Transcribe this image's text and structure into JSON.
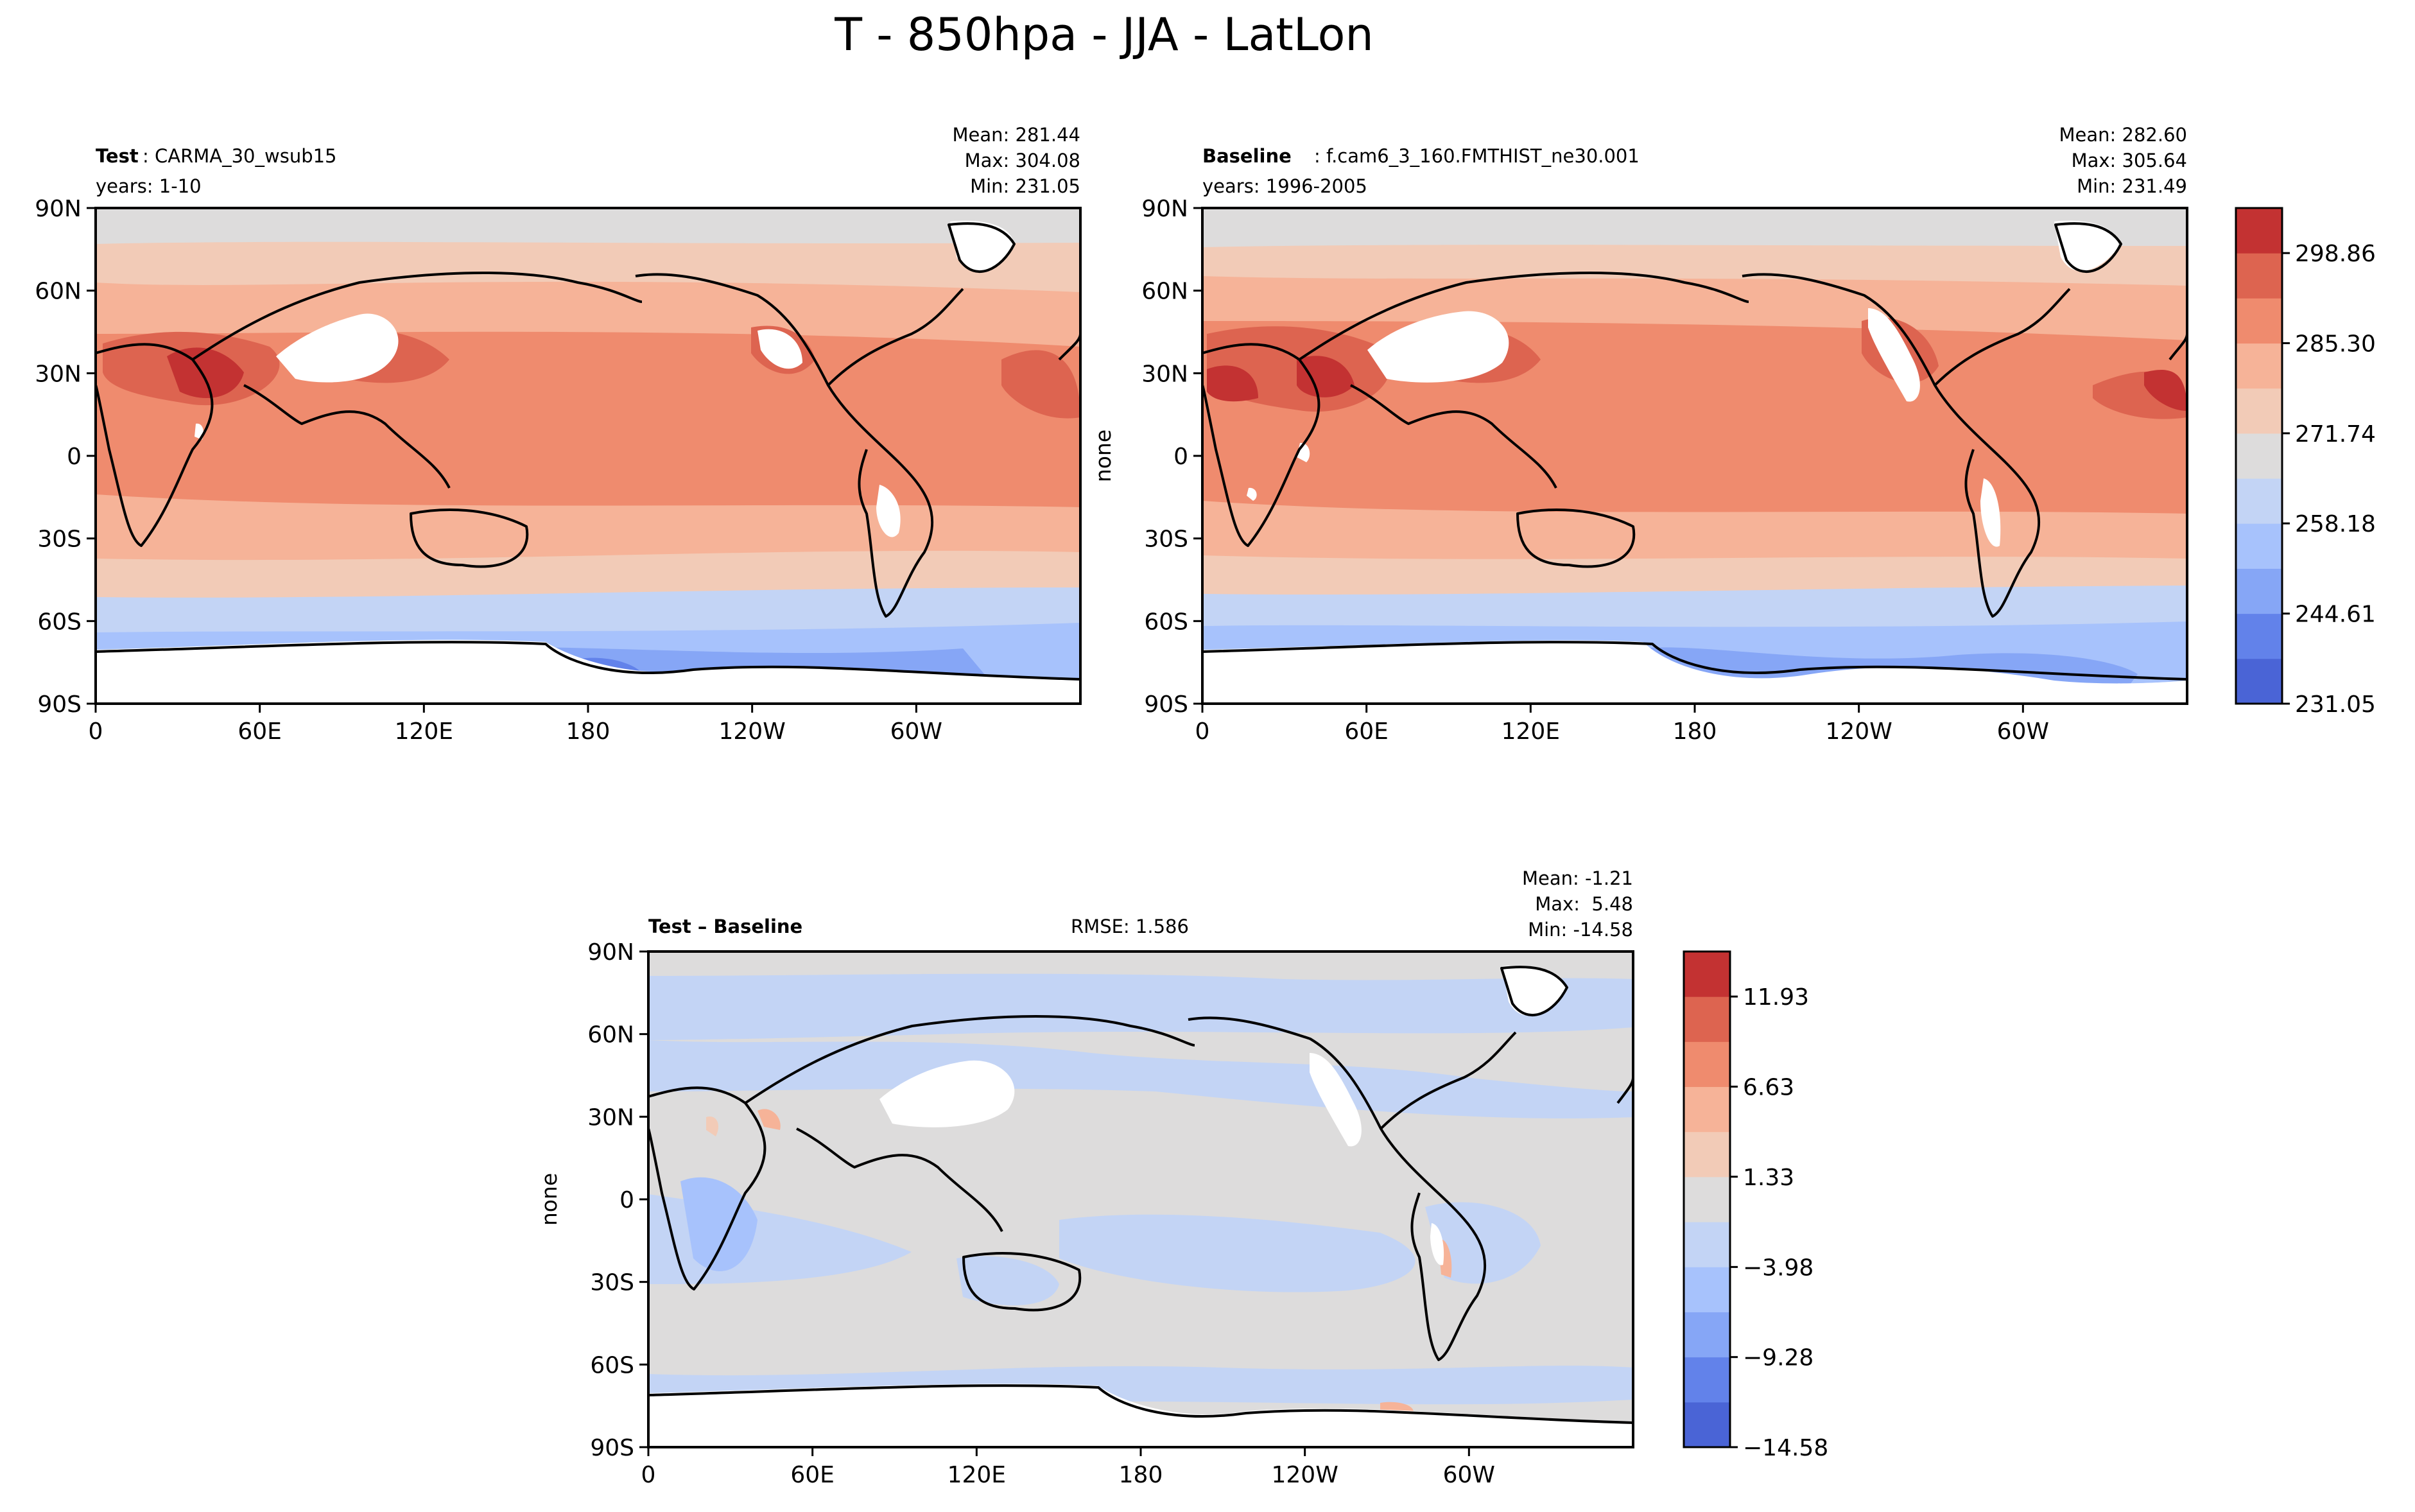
{
  "figure_title": "T - 850hpa - JJA - LatLon",
  "colors": {
    "lev0": "#4a64d6",
    "lev1": "#6282ea",
    "lev2": "#86a6f6",
    "lev3": "#a7c2fc",
    "lev4": "#c3d4f5",
    "lev5": "#dddcdc",
    "lev6": "#f2cbb7",
    "lev7": "#f6b398",
    "lev8": "#ef8b6e",
    "lev9": "#dd6450",
    "lev10": "#c33232",
    "missing": "#ffffff",
    "coast": "#000000"
  },
  "chart_data": [
    {
      "type": "heatmap",
      "id": "test",
      "header_bold": "Test",
      "header_text": ": CARMA_30_wsub15",
      "years": "years: 1-10",
      "stats": [
        "Mean: 281.44",
        "Max: 304.08",
        "Min: 231.05"
      ],
      "ylabel": "",
      "xticks": [
        "0",
        "60E",
        "120E",
        "180",
        "120W",
        "60W"
      ],
      "yticks": [
        "90N",
        "60N",
        "30N",
        "0",
        "30S",
        "60S",
        "90S"
      ],
      "xlim": [
        0,
        360
      ],
      "ylim": [
        -90,
        90
      ],
      "variable": "T",
      "level": "850hpa",
      "season": "JJA"
    },
    {
      "type": "heatmap",
      "id": "baseline",
      "header_bold": "Baseline",
      "header_text": ": f.cam6_3_160.FMTHIST_ne30.001",
      "years": "years: 1996-2005",
      "stats": [
        "Mean: 282.60",
        "Max: 305.64",
        "Min: 231.49"
      ],
      "ylabel": "none",
      "xticks": [
        "0",
        "60E",
        "120E",
        "180",
        "120W",
        "60W"
      ],
      "yticks": [
        "90N",
        "60N",
        "30N",
        "0",
        "30S",
        "60S",
        "90S"
      ],
      "xlim": [
        0,
        360
      ],
      "ylim": [
        -90,
        90
      ],
      "colorbar": {
        "levels": [
          231.05,
          244.61,
          258.18,
          271.74,
          285.3,
          298.86,
          305.64
        ],
        "labels": [
          "298.86",
          "285.30",
          "271.74",
          "258.18",
          "244.61",
          "231.05"
        ]
      }
    },
    {
      "type": "heatmap",
      "id": "diff",
      "header_bold": "Test – Baseline",
      "rmse": "RMSE: 1.586",
      "stats": [
        "Mean: -1.21",
        "Max:  5.48",
        "Min: -14.58"
      ],
      "ylabel": "none",
      "xticks": [
        "0",
        "60E",
        "120E",
        "180",
        "120W",
        "60W"
      ],
      "yticks": [
        "90N",
        "60N",
        "30N",
        "0",
        "30S",
        "60S",
        "90S"
      ],
      "xlim": [
        0,
        360
      ],
      "ylim": [
        -90,
        90
      ],
      "colorbar": {
        "levels": [
          -14.58,
          -9.28,
          -3.98,
          1.33,
          6.63,
          11.93,
          14.58
        ],
        "labels": [
          "11.93",
          "6.63",
          "1.33",
          "−3.98",
          "−9.28",
          "−14.58"
        ]
      }
    }
  ]
}
